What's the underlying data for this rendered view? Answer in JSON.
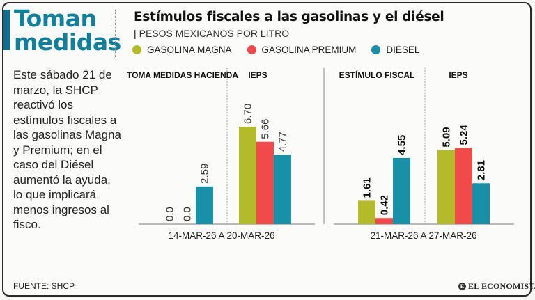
{
  "sidebar": {
    "headline": "Toman\nmedidas",
    "body": "Este sábado 21 de marzo, la SHCP reactivó los estímulos fiscales a las gasolinas Magna y Premium; en el caso del Diésel aumentó la ayuda, lo que implicará menos ingresos al fisco.",
    "source": "FUENTE: SHCP"
  },
  "brand": {
    "logo_text": "EL ECONOMISTA"
  },
  "colors": {
    "magna": "#b3bb2a",
    "premium": "#f04a4a",
    "diesel": "#1790a8",
    "accent": "#11809c"
  },
  "chart_data": {
    "type": "bar",
    "title": "Estímulos fiscales a las gasolinas y el diésel",
    "subtitle": "PESOS MEXICANOS POR LITRO",
    "legend": [
      "GASOLINA MAGNA",
      "GASOLINA PREMIUM",
      "DIÉSEL"
    ],
    "groups": [
      {
        "period": "14-MAR-26 A 20-MAR-26",
        "sections": [
          {
            "label": "TOMA MEDIDAS HACIENDA",
            "values": [
              0.0,
              0.0,
              2.59
            ],
            "display": [
              "0.0",
              "0.0",
              "2.59"
            ]
          },
          {
            "label": "IEPS",
            "values": [
              6.7,
              5.66,
              4.77
            ],
            "display": [
              "6.70",
              "5.66",
              "4.77"
            ]
          }
        ]
      },
      {
        "period": "21-MAR-26 A 27-MAR-26",
        "sections": [
          {
            "label": "ESTÍMULO FISCAL",
            "values": [
              1.61,
              0.42,
              4.55
            ],
            "display": [
              "1.61",
              "0.42",
              "4.55"
            ]
          },
          {
            "label": "IEPS",
            "values": [
              5.09,
              5.24,
              2.81
            ],
            "display": [
              "5.09",
              "5.24",
              "2.81"
            ]
          }
        ]
      }
    ],
    "ylim": [
      0,
      7.5
    ]
  }
}
